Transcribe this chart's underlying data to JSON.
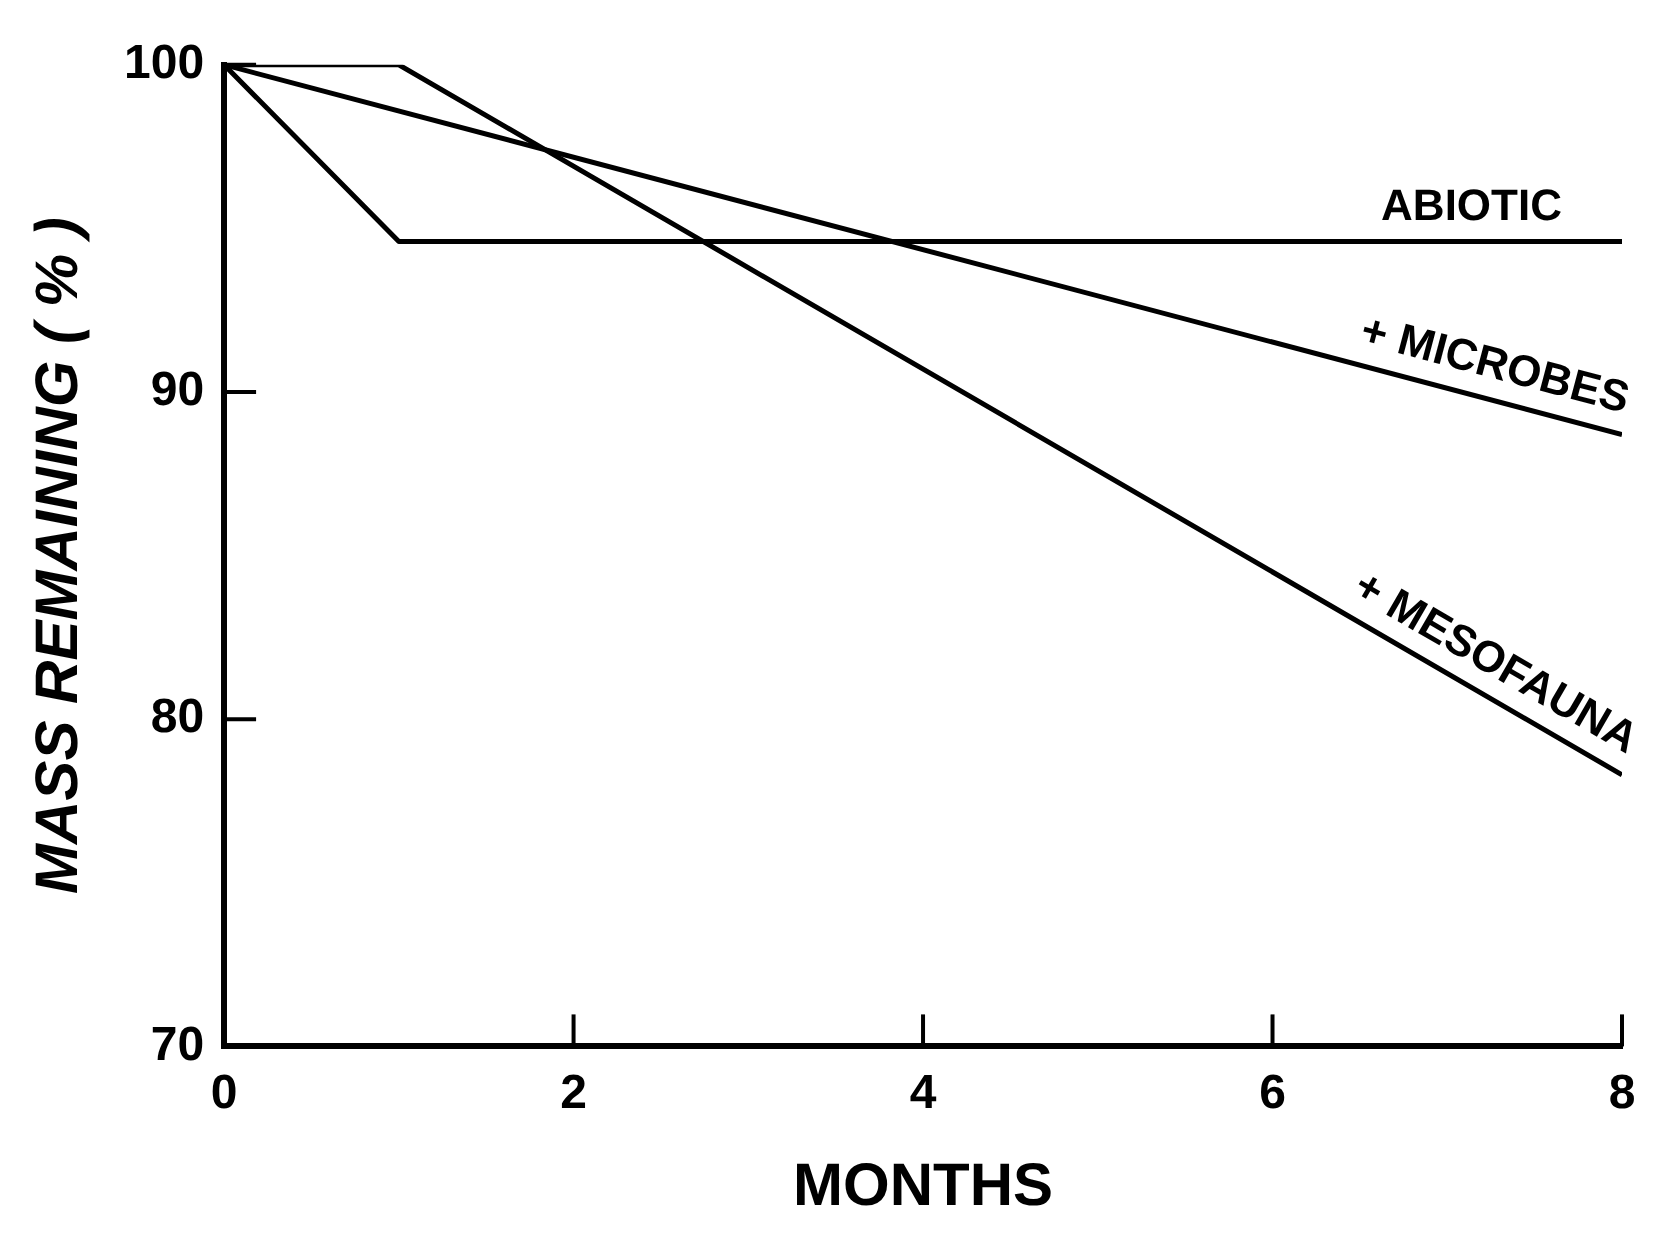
{
  "chart_data": {
    "type": "line",
    "xlabel": "MONTHS",
    "ylabel": "MASS REMAINING ( % )",
    "xlim": [
      0,
      8
    ],
    "ylim": [
      70,
      100
    ],
    "xticks": [
      0,
      2,
      4,
      6,
      8
    ],
    "yticks": [
      70,
      80,
      90,
      100
    ],
    "grid": false,
    "legend": false,
    "marker": "none",
    "line_style": "solid",
    "series": [
      {
        "x": [
          0,
          1,
          8
        ],
        "values": [
          100,
          94.6,
          94.6
        ],
        "color": "#000000"
      },
      {
        "x": [
          0,
          8
        ],
        "values": [
          100,
          88.7
        ],
        "color": "#000000"
      },
      {
        "x": [
          0,
          1,
          8
        ],
        "values": [
          100,
          100,
          78.3
        ],
        "color": "#000000"
      }
    ],
    "annotations": [
      "ABIOTIC",
      "+ MICROBES",
      "+ MESOFAUNA"
    ]
  }
}
